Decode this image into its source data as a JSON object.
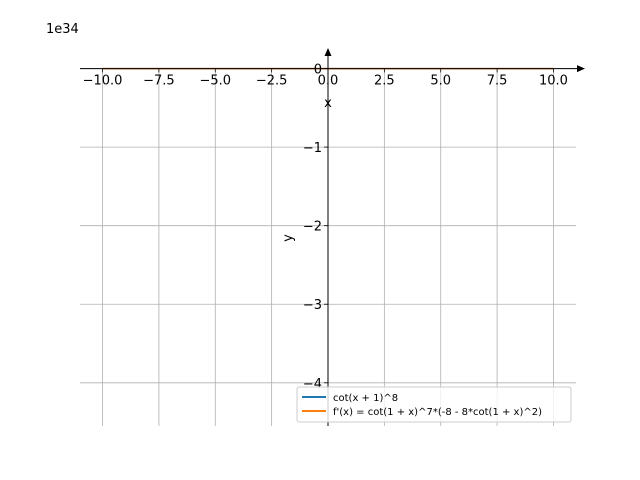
{
  "chart_data": {
    "type": "line",
    "title": "",
    "xlabel": "x",
    "ylabel": "y",
    "xlim": [
      -11.0,
      11.0
    ],
    "ylim": [
      -4.55,
      0.3
    ],
    "y_scale_exponent_label": "1e34",
    "x_ticks": [
      -10.0,
      -7.5,
      -5.0,
      -2.5,
      0.0,
      2.5,
      5.0,
      7.5,
      10.0
    ],
    "x_tick_labels": [
      "−10.0",
      "−7.5",
      "−5.0",
      "−2.5",
      "0.0",
      "2.5",
      "5.0",
      "7.5",
      "10.0"
    ],
    "y_ticks": [
      0,
      -1,
      -2,
      -3,
      -4
    ],
    "y_tick_labels": [
      "0",
      "−1",
      "−2",
      "−3",
      "−4"
    ],
    "grid": true,
    "legend_position": "lower-right",
    "series": [
      {
        "name": "cot(x + 1)^8",
        "color": "#1f77b4",
        "x": [
          -10.0,
          -7.5,
          -5.0,
          -2.5,
          0.0,
          2.5,
          5.0,
          7.5,
          10.0
        ],
        "y": [
          0,
          0,
          0,
          0,
          0,
          0,
          0,
          0,
          0
        ]
      },
      {
        "name": "f'(x) = cot(1 + x)^7*(-8 - 8*cot(1 + x)^2)",
        "color": "#ff7f0e",
        "x": [
          -10.0,
          -7.5,
          -5.0,
          -2.5,
          0.0,
          2.5,
          5.0,
          7.5,
          10.0
        ],
        "y": [
          0,
          0,
          0,
          0,
          0,
          0,
          0,
          0,
          0
        ]
      }
    ]
  }
}
